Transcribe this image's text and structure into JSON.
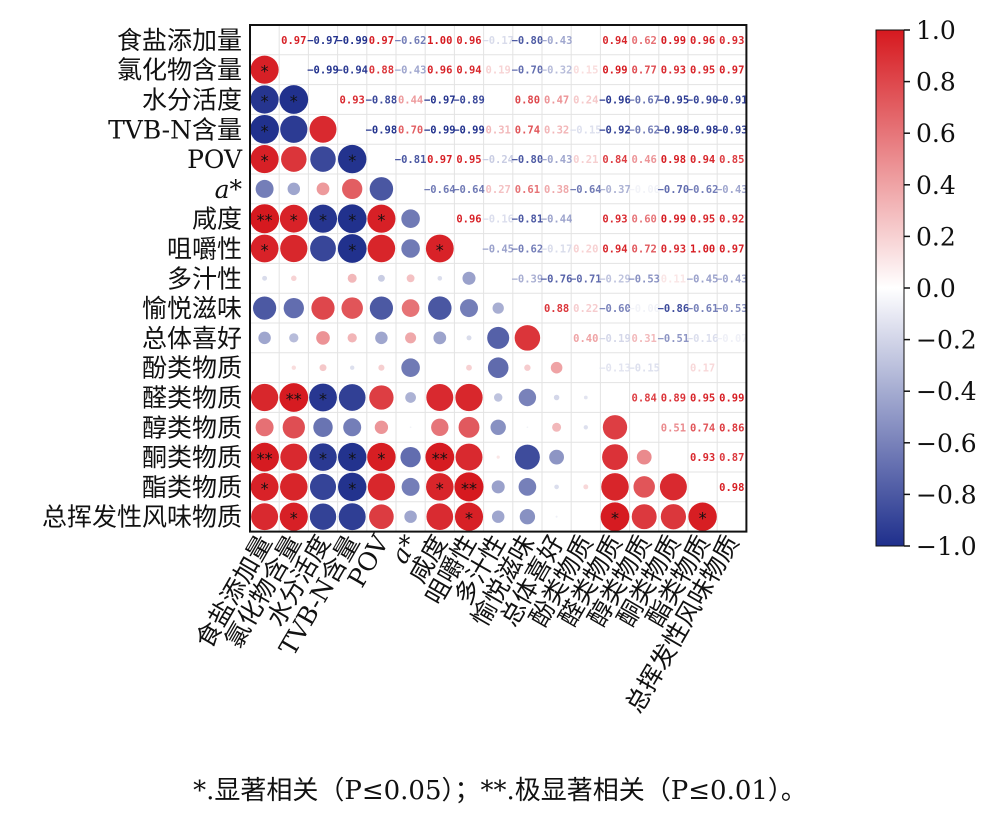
{
  "chart_data": {
    "type": "heatmap",
    "subtype": "correlation-matrix",
    "variables": [
      "食盐添加量",
      "氯化物含量",
      "水分活度",
      "TVB-N含量",
      "POV",
      "a*",
      "咸度",
      "咀嚼性",
      "多汁性",
      "愉悦滋味",
      "总体喜好",
      "酚类物质",
      "醛类物质",
      "醇类物质",
      "酮类物质",
      "酯类物质",
      "总挥发性风味物质"
    ],
    "upper_triangle_values": [
      [
        null,
        0.97,
        -0.97,
        -0.99,
        0.97,
        -0.62,
        1.0,
        0.96,
        -0.17,
        -0.8,
        -0.43,
        null,
        0.94,
        0.62,
        0.99,
        0.96,
        0.93
      ],
      [
        null,
        null,
        -0.99,
        -0.94,
        0.88,
        -0.43,
        0.96,
        0.94,
        0.19,
        -0.7,
        -0.32,
        0.15,
        0.99,
        0.77,
        0.93,
        0.95,
        0.97
      ],
      [
        null,
        null,
        null,
        0.93,
        -0.88,
        0.44,
        -0.97,
        -0.89,
        null,
        0.8,
        0.47,
        0.24,
        -0.96,
        -0.67,
        -0.95,
        -0.9,
        -0.91
      ],
      [
        null,
        null,
        null,
        null,
        -0.98,
        0.7,
        -0.99,
        -0.99,
        0.31,
        0.74,
        0.32,
        -0.15,
        -0.92,
        -0.62,
        -0.98,
        -0.98,
        -0.93
      ],
      [
        null,
        null,
        null,
        null,
        null,
        -0.81,
        0.97,
        0.95,
        -0.24,
        -0.8,
        -0.43,
        0.21,
        0.84,
        0.46,
        0.98,
        0.94,
        0.85
      ],
      [
        null,
        null,
        null,
        null,
        null,
        null,
        -0.64,
        -0.64,
        0.27,
        0.61,
        0.38,
        -0.64,
        -0.37,
        -0.06,
        -0.7,
        -0.62,
        -0.43
      ],
      [
        null,
        null,
        null,
        null,
        null,
        null,
        null,
        0.96,
        -0.16,
        -0.81,
        -0.44,
        null,
        0.93,
        0.6,
        0.99,
        0.95,
        0.92
      ],
      [
        null,
        null,
        null,
        null,
        null,
        null,
        null,
        null,
        -0.45,
        -0.62,
        -0.17,
        0.2,
        0.94,
        0.72,
        0.93,
        1.0,
        0.97
      ],
      [
        null,
        null,
        null,
        null,
        null,
        null,
        null,
        null,
        null,
        -0.39,
        -0.76,
        -0.71,
        -0.29,
        -0.53,
        0.11,
        -0.45,
        -0.43
      ],
      [
        null,
        null,
        null,
        null,
        null,
        null,
        null,
        null,
        null,
        null,
        0.88,
        0.22,
        -0.6,
        -0.06,
        -0.86,
        -0.61,
        -0.53
      ],
      [
        null,
        null,
        null,
        null,
        null,
        null,
        null,
        null,
        null,
        null,
        null,
        0.4,
        -0.19,
        0.31,
        -0.51,
        -0.16,
        -0.07
      ],
      [
        null,
        null,
        null,
        null,
        null,
        null,
        null,
        null,
        null,
        null,
        null,
        null,
        -0.13,
        -0.15,
        null,
        0.17,
        null
      ],
      [
        null,
        null,
        null,
        null,
        null,
        null,
        null,
        null,
        null,
        null,
        null,
        null,
        null,
        0.84,
        0.89,
        0.95,
        0.99
      ],
      [
        null,
        null,
        null,
        null,
        null,
        null,
        null,
        null,
        null,
        null,
        null,
        null,
        null,
        null,
        0.51,
        0.74,
        0.86
      ],
      [
        null,
        null,
        null,
        null,
        null,
        null,
        null,
        null,
        null,
        null,
        null,
        null,
        null,
        null,
        null,
        0.93,
        0.87
      ],
      [
        null,
        null,
        null,
        null,
        null,
        null,
        null,
        null,
        null,
        null,
        null,
        null,
        null,
        null,
        null,
        null,
        0.98
      ],
      [
        null,
        null,
        null,
        null,
        null,
        null,
        null,
        null,
        null,
        null,
        null,
        null,
        null,
        null,
        null,
        null,
        null
      ]
    ],
    "significance": [
      [
        1,
        0,
        "*"
      ],
      [
        2,
        0,
        "*"
      ],
      [
        3,
        0,
        "*"
      ],
      [
        4,
        0,
        "*"
      ],
      [
        6,
        0,
        "**"
      ],
      [
        7,
        0,
        "*"
      ],
      [
        14,
        0,
        "**"
      ],
      [
        15,
        0,
        "*"
      ],
      [
        2,
        1,
        "*"
      ],
      [
        6,
        1,
        "*"
      ],
      [
        12,
        1,
        "**"
      ],
      [
        16,
        1,
        "*"
      ],
      [
        6,
        2,
        "*"
      ],
      [
        12,
        2,
        "*"
      ],
      [
        14,
        2,
        "*"
      ],
      [
        4,
        3,
        "*"
      ],
      [
        6,
        3,
        "*"
      ],
      [
        7,
        3,
        "*"
      ],
      [
        14,
        3,
        "*"
      ],
      [
        15,
        3,
        "*"
      ],
      [
        6,
        4,
        "*"
      ],
      [
        14,
        4,
        "*"
      ],
      [
        7,
        6,
        "*"
      ],
      [
        14,
        6,
        "**"
      ],
      [
        15,
        6,
        "*"
      ],
      [
        15,
        7,
        "**"
      ],
      [
        16,
        7,
        "*"
      ],
      [
        16,
        12,
        "*"
      ],
      [
        16,
        15,
        "*"
      ]
    ],
    "colorbar": {
      "range": [
        -1.0,
        1.0
      ],
      "ticks": [
        "1.0",
        "0.8",
        "0.6",
        "0.4",
        "0.2",
        "0.0",
        "−0.2",
        "−0.4",
        "−0.6",
        "−0.8",
        "−1.0"
      ],
      "colors": {
        "negative": "#1f2f8c",
        "zero": "#ffffff",
        "positive": "#d6191f"
      }
    }
  },
  "footnote": "*.显著相关（P≤0.05）；**.极显著相关（P≤0.01）。"
}
